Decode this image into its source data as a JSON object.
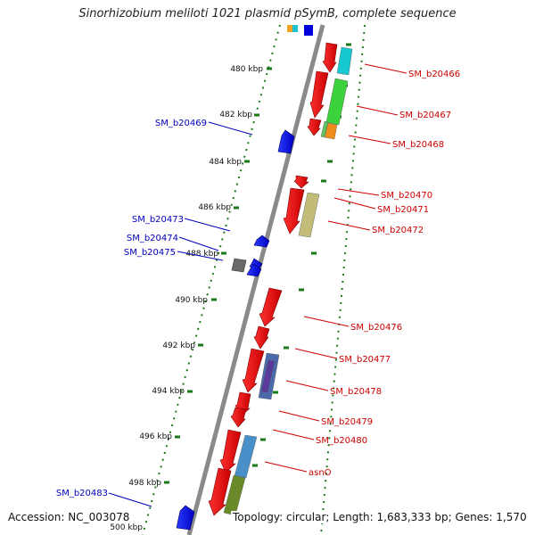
{
  "title": "Sinorhizobium meliloti 1021 plasmid pSymB, complete sequence",
  "footer": {
    "accession": "Accession: NC_003078",
    "topology": "Topology: circular; Length: 1,683,333 bp; Genes: 1,570"
  },
  "colors": {
    "forward_label": "#cc0000",
    "reverse_label": "#0000bb",
    "backbone": "#8a8a8a",
    "tick": "#1a7a1a"
  },
  "ruler": [
    "480 kbp",
    "482 kbp",
    "484 kbp",
    "486 kbp",
    "488 kbp",
    "490 kbp",
    "492 kbp",
    "494 kbp",
    "496 kbp",
    "498 kbp",
    "500 kbp"
  ],
  "forward_labels": [
    "SM_b20466",
    "SM_b20467",
    "SM_b20468",
    "SM_b20470",
    "SM_b20471",
    "SM_b20472",
    "SM_b20476",
    "SM_b20477",
    "SM_b20478",
    "SM_b20479",
    "SM_b20480",
    "asnO"
  ],
  "reverse_labels": [
    "SM_b20469",
    "SM_b20473",
    "SM_b20474",
    "SM_b20475",
    "SM_b20483"
  ]
}
